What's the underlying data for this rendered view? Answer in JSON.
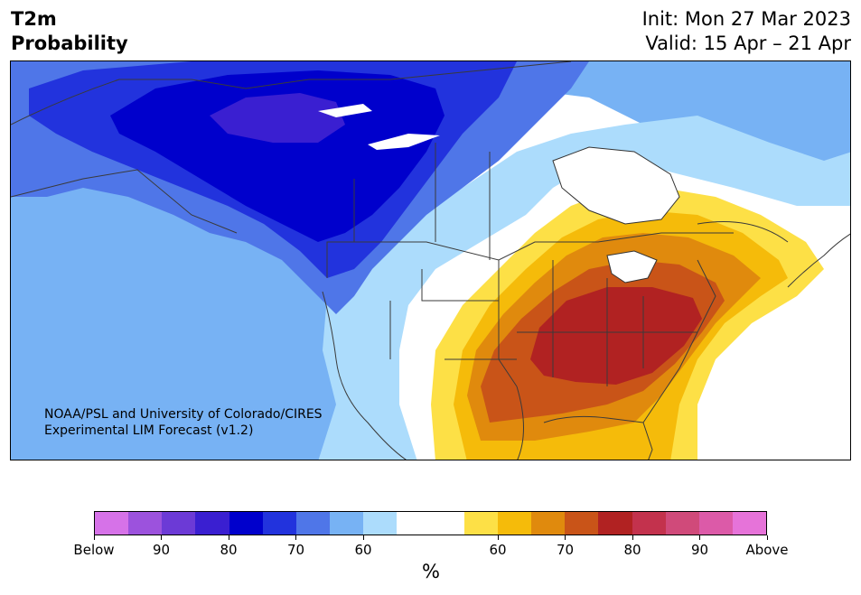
{
  "header": {
    "title_line1": "T2m",
    "title_line2": "Probability",
    "init": "Init: Mon 27 Mar 2023",
    "valid": "Valid: 15 Apr – 21 Apr"
  },
  "credit": {
    "line1": "NOAA/PSL and University of Colorado/CIRES",
    "line2": "Experimental LIM Forecast (v1.2)"
  },
  "colorbar": {
    "colors": [
      "#d672e8",
      "#9c52dd",
      "#6c3ad6",
      "#3a1fd1",
      "#0000cc",
      "#2233dd",
      "#4f76e8",
      "#77b2f4",
      "#acdcfc",
      "#ffffff",
      "#ffffff",
      "#fde046",
      "#f5bb0a",
      "#e08a0d",
      "#c95418",
      "#b12222",
      "#c3324d",
      "#d04a7a",
      "#dc5aa8",
      "#e673d9"
    ],
    "tick_labels": [
      "Below",
      "90",
      "80",
      "70",
      "60",
      "60",
      "70",
      "80",
      "90",
      "Above"
    ],
    "units": "%"
  },
  "map": {
    "below_colors": {
      "p90": "#3a1fd1",
      "p80": "#0000cc",
      "p70": "#2233dd",
      "p65": "#4f76e8",
      "p60": "#77b2f4",
      "p55": "#acdcfc"
    },
    "above_colors": {
      "p55": "#fde046",
      "p60": "#f5bb0a",
      "p65": "#e08a0d",
      "p70": "#c95418",
      "p75": "#b12222"
    },
    "land_outline": "#333333"
  }
}
